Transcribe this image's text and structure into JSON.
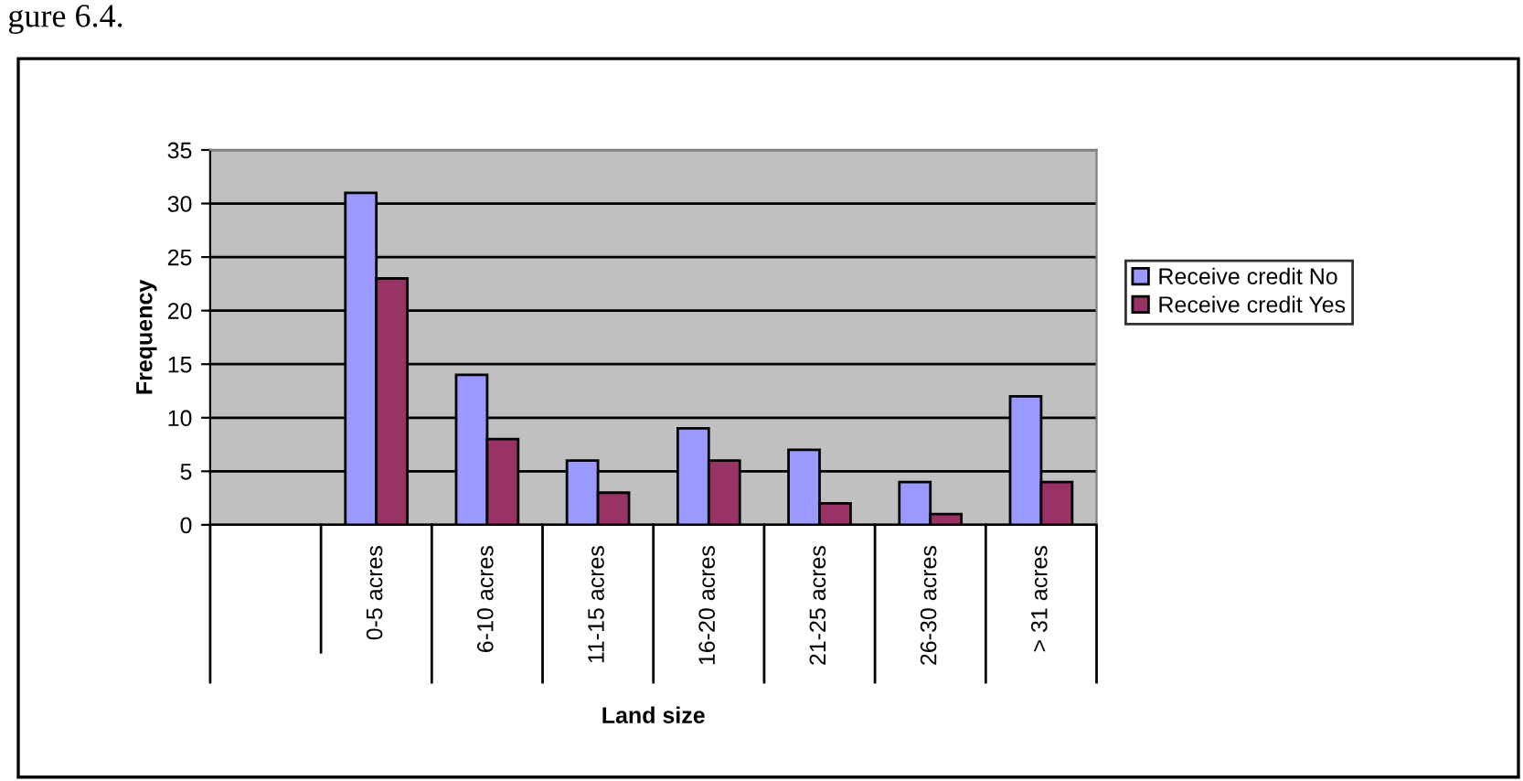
{
  "chart_data": {
    "type": "bar",
    "xlabel": "Land size",
    "ylabel": "Frequency",
    "annotations": [
      "gure 6.4."
    ],
    "categories": [
      null,
      "0-5 acres",
      "6-10 acres",
      "11-15 acres",
      "16-20 acres",
      "21-25 acres",
      "26-30 acres",
      "> 31 acres"
    ],
    "series": [
      {
        "name": "Receive credit No",
        "color": "#9999ff",
        "values": [
          null,
          31,
          14,
          6,
          9,
          7,
          4,
          12
        ]
      },
      {
        "name": "Receive credit Yes",
        "color": "#993366",
        "values": [
          null,
          23,
          8,
          3,
          6,
          2,
          1,
          4
        ]
      }
    ],
    "ylim": [
      0,
      35
    ],
    "yticks": [
      0,
      5,
      10,
      15,
      20,
      25,
      30,
      35
    ],
    "grid": "y",
    "legend": "right"
  }
}
